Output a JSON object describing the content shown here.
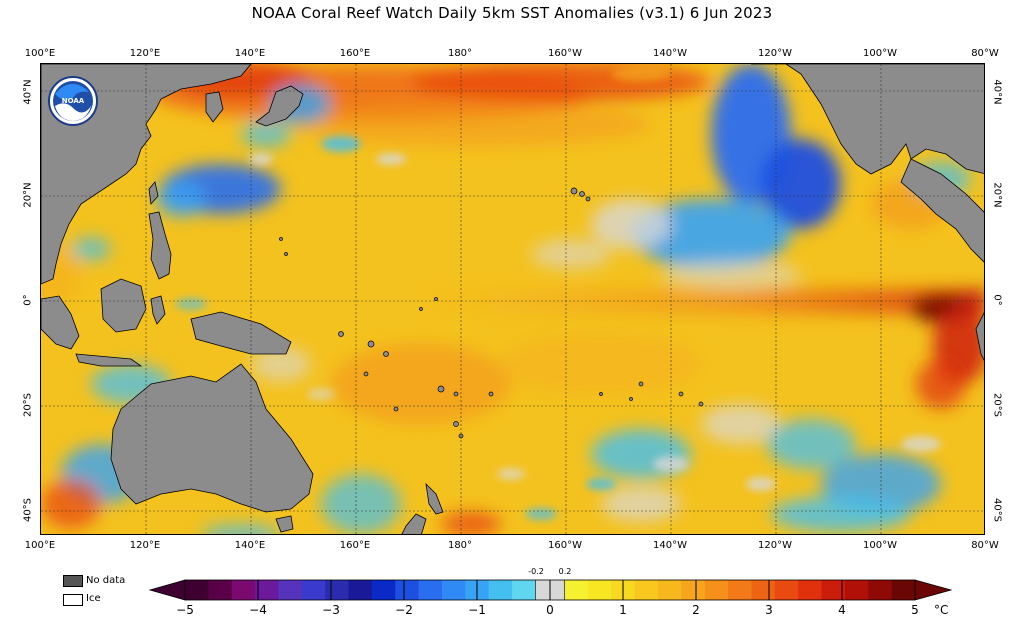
{
  "title": "NOAA Coral Reef Watch Daily 5km SST Anomalies  (v3.1)   6 Jun 2023",
  "logo_text": "NOAA",
  "lon_labels": [
    "100°E",
    "120°E",
    "140°E",
    "160°E",
    "180°",
    "160°W",
    "140°W",
    "120°W",
    "100°W",
    "80°W"
  ],
  "lat_labels": [
    "40°N",
    "20°N",
    "0°",
    "20°S",
    "40°S"
  ],
  "legend": {
    "no_data": "No data",
    "ice": "Ice",
    "no_data_color": "#555555",
    "ice_color": "#ffffff"
  },
  "colorbar": {
    "ticks": [
      "−5",
      "−4",
      "−3",
      "−2",
      "−1",
      "0",
      "1",
      "2",
      "3",
      "4",
      "5"
    ],
    "small_labels": [
      "-0.2",
      "0.2"
    ],
    "unit": "°C",
    "colors_negative": [
      "#3d0030",
      "#5a0048",
      "#7a0a70",
      "#6a1a9a",
      "#5533bb",
      "#3a3acc",
      "#2b2bb0",
      "#1a1a99",
      "#0a2ac8",
      "#1d50e0",
      "#2a6ef0",
      "#2f8af5",
      "#38a3f5",
      "#45bff0",
      "#60d6f0"
    ],
    "colors_positive": [
      "#f5f030",
      "#f7e622",
      "#f8d820",
      "#f8c81e",
      "#f7b81e",
      "#f6a61d",
      "#f5901b",
      "#f27a18",
      "#ee6414",
      "#e94a10",
      "#e0300c",
      "#cc1d0a",
      "#b01008",
      "#8f0a06",
      "#6a0604"
    ],
    "near_zero_color": "#d8d8d8"
  },
  "colors": {
    "land": "#8c8c8c",
    "ocean_base": "#f4c21e"
  }
}
